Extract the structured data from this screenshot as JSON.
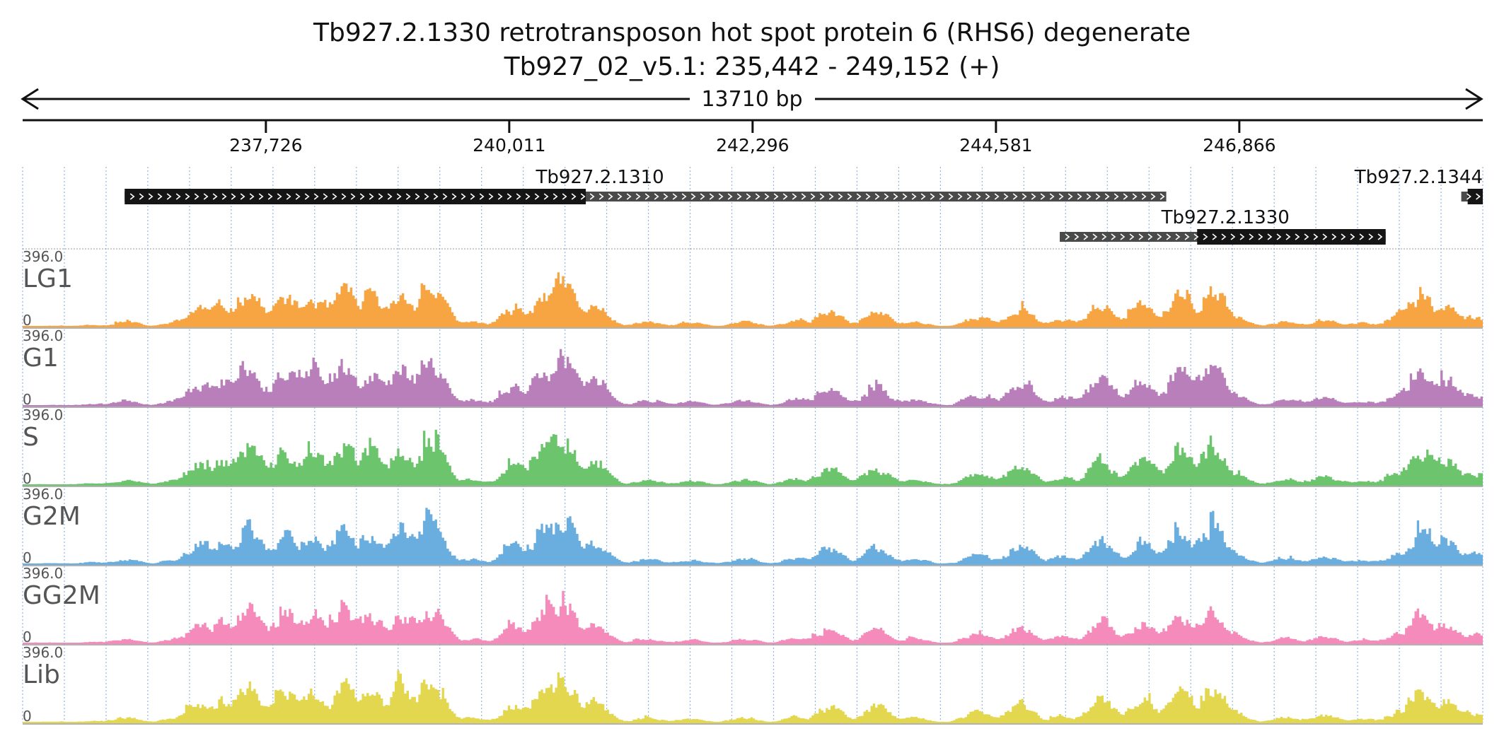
{
  "chart_data": {
    "type": "area",
    "title": "Tb927.2.1330  retrotransposon hot spot protein 6 (RHS6)  degenerate",
    "subtitle": "Tb927_02_v5.1: 235,442 - 249,152 (+)",
    "span_label": "13710 bp",
    "xlim": [
      235442,
      249152
    ],
    "ylim": [
      0,
      396.0
    ],
    "y_max_label": "396.0",
    "y_min_label": "0",
    "x_ticks": [
      {
        "value": 237726,
        "label": "237,726"
      },
      {
        "value": 240011,
        "label": "240,011"
      },
      {
        "value": 242296,
        "label": "242,296"
      },
      {
        "value": 244581,
        "label": "244,581"
      },
      {
        "value": 246866,
        "label": "246,866"
      }
    ],
    "grid": true,
    "genes": [
      {
        "name": "Tb927.2.1310",
        "start": 236400,
        "end": 246180,
        "cds_start": 236400,
        "cds_end": 240730,
        "strand": "+",
        "row": 0
      },
      {
        "name": "Tb927.2.1344",
        "start": 248950,
        "end": 249152,
        "cds_start": 249010,
        "cds_end": 249152,
        "strand": "+",
        "row": 0
      },
      {
        "name": "Tb927.2.1330",
        "start": 245180,
        "end": 248240,
        "cds_start": 246470,
        "cds_end": 248240,
        "strand": "+",
        "row": 1
      }
    ],
    "peaks": [
      {
        "pos": 236100,
        "h": 0.04
      },
      {
        "pos": 236400,
        "h": 0.1
      },
      {
        "pos": 236900,
        "h": 0.12
      },
      {
        "pos": 237100,
        "h": 0.4
      },
      {
        "pos": 237310,
        "h": 0.45
      },
      {
        "pos": 237550,
        "h": 0.72
      },
      {
        "pos": 237900,
        "h": 0.6
      },
      {
        "pos": 238150,
        "h": 0.55
      },
      {
        "pos": 238450,
        "h": 0.7
      },
      {
        "pos": 238700,
        "h": 0.6
      },
      {
        "pos": 239000,
        "h": 0.65
      },
      {
        "pos": 239270,
        "h": 0.8
      },
      {
        "pos": 239650,
        "h": 0.1
      },
      {
        "pos": 240050,
        "h": 0.35
      },
      {
        "pos": 240340,
        "h": 0.7
      },
      {
        "pos": 240500,
        "h": 0.9
      },
      {
        "pos": 240800,
        "h": 0.4
      },
      {
        "pos": 241300,
        "h": 0.1
      },
      {
        "pos": 241700,
        "h": 0.08
      },
      {
        "pos": 242200,
        "h": 0.1
      },
      {
        "pos": 242700,
        "h": 0.12
      },
      {
        "pos": 243000,
        "h": 0.3
      },
      {
        "pos": 243450,
        "h": 0.3
      },
      {
        "pos": 243800,
        "h": 0.1
      },
      {
        "pos": 244400,
        "h": 0.2
      },
      {
        "pos": 244800,
        "h": 0.35
      },
      {
        "pos": 245200,
        "h": 0.15
      },
      {
        "pos": 245550,
        "h": 0.45
      },
      {
        "pos": 245950,
        "h": 0.45
      },
      {
        "pos": 246300,
        "h": 0.6
      },
      {
        "pos": 246600,
        "h": 0.75
      },
      {
        "pos": 246800,
        "h": 0.2
      },
      {
        "pos": 247300,
        "h": 0.12
      },
      {
        "pos": 247650,
        "h": 0.15
      },
      {
        "pos": 248000,
        "h": 0.08
      },
      {
        "pos": 248350,
        "h": 0.2
      },
      {
        "pos": 248550,
        "h": 0.6
      },
      {
        "pos": 248800,
        "h": 0.45
      },
      {
        "pos": 249050,
        "h": 0.2
      }
    ],
    "series": [
      {
        "name": "LG1",
        "color": "#f7a543",
        "seed": 11,
        "scale": 0.85
      },
      {
        "name": "G1",
        "color": "#b87fbb",
        "seed": 23,
        "scale": 1.0
      },
      {
        "name": "S",
        "color": "#6cc46c",
        "seed": 37,
        "scale": 0.95
      },
      {
        "name": "G2M",
        "color": "#6aaee0",
        "seed": 41,
        "scale": 0.9
      },
      {
        "name": "GG2M",
        "color": "#f58bbb",
        "seed": 53,
        "scale": 0.8
      },
      {
        "name": "Lib",
        "color": "#e3d74f",
        "seed": 67,
        "scale": 0.88
      }
    ]
  }
}
